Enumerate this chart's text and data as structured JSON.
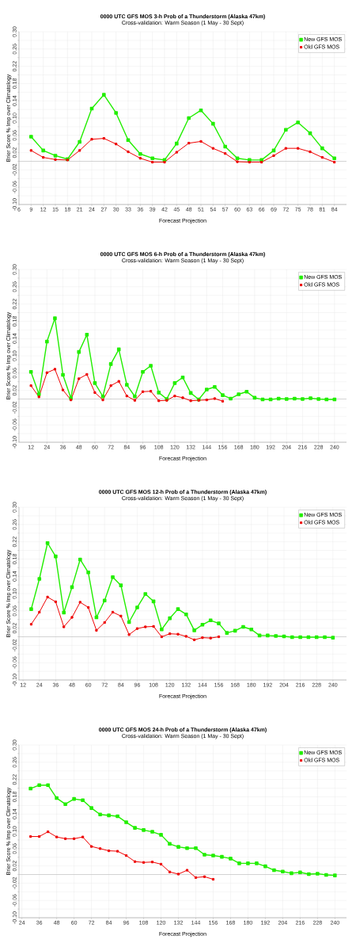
{
  "chart_data": [
    {
      "type": "line",
      "title": "0000 UTC GFS MOS 3-h Prob of a Thunderstorm (Alaska 47km)",
      "subtitle": "Cross-validation: Warm Season (1 May - 30 Sept)",
      "xlabel": "Forecast Projection",
      "ylabel": "Brier Score % Imp over Climatology",
      "grid": true,
      "legend": "top right",
      "marker": "square",
      "line_style": "solid",
      "xlim": [
        6,
        87
      ],
      "ylim": [
        -0.1,
        0.3
      ],
      "xticks": [
        6,
        9,
        12,
        15,
        18,
        21,
        24,
        27,
        30,
        33,
        36,
        39,
        42,
        45,
        48,
        51,
        54,
        57,
        60,
        63,
        66,
        69,
        72,
        75,
        78,
        81,
        84
      ],
      "yticks": [
        {
          "value": -0.1,
          "label": "-0.10"
        },
        {
          "value": -0.08,
          "label": null
        },
        {
          "value": -0.06,
          "label": "-0.06"
        },
        {
          "value": -0.04,
          "label": null
        },
        {
          "value": -0.02,
          "label": "-0.02"
        },
        {
          "value": 0,
          "label": null
        },
        {
          "value": 0.02,
          "label": "0.02"
        },
        {
          "value": 0.04,
          "label": null
        },
        {
          "value": 0.06,
          "label": "0.06"
        },
        {
          "value": 0.08,
          "label": null
        },
        {
          "value": 0.1,
          "label": "0.10"
        },
        {
          "value": 0.12,
          "label": null
        },
        {
          "value": 0.14,
          "label": "0.14"
        },
        {
          "value": 0.16,
          "label": null
        },
        {
          "value": 0.18,
          "label": "0.18"
        },
        {
          "value": 0.2,
          "label": null
        },
        {
          "value": 0.22,
          "label": "0.22"
        },
        {
          "value": 0.24,
          "label": null
        },
        {
          "value": 0.26,
          "label": "0.26"
        },
        {
          "value": 0.28,
          "label": null
        },
        {
          "value": 0.3,
          "label": "0.30"
        }
      ],
      "ref_lines": [
        {
          "axis": "y",
          "value": 0,
          "color": "#b0b0b0"
        }
      ],
      "series": [
        {
          "name": "New GFS MOS",
          "color": "#22ee00",
          "x": [
            9,
            12,
            15,
            18,
            21,
            24,
            27,
            30,
            33,
            36,
            39,
            42,
            45,
            48,
            51,
            54,
            57,
            60,
            63,
            66,
            69,
            72,
            75,
            78,
            81,
            84
          ],
          "values": [
            0.057,
            0.025,
            0.013,
            0.005,
            0.045,
            0.122,
            0.154,
            0.112,
            0.049,
            0.017,
            0.007,
            0.003,
            0.041,
            0.1,
            0.118,
            0.087,
            0.034,
            0.007,
            0.003,
            0.003,
            0.025,
            0.073,
            0.09,
            0.065,
            0.03,
            0.007
          ]
        },
        {
          "name": "Old GFS MOS",
          "color": "#ee0000",
          "x": [
            9,
            12,
            15,
            18,
            21,
            24,
            27,
            30,
            33,
            36,
            39,
            42,
            45,
            48,
            51,
            54,
            57,
            60,
            63,
            66,
            69,
            72,
            75,
            78,
            81,
            84
          ],
          "values": [
            0.025,
            0.009,
            0.004,
            0.003,
            0.025,
            0.051,
            0.053,
            0.04,
            0.022,
            0.007,
            -0.002,
            -0.002,
            0.021,
            0.042,
            0.046,
            0.03,
            0.018,
            -0.001,
            -0.002,
            -0.002,
            0.013,
            0.03,
            0.03,
            0.022,
            0.009,
            -0.002
          ]
        }
      ]
    },
    {
      "type": "line",
      "title": "0000 UTC GFS MOS 6-h Prob of a Thunderstorm (Alaska 47km)",
      "subtitle": "Cross-validation: Warm Season (1 May - 30 Sept)",
      "xlabel": "Forecast Projection",
      "ylabel": "Brier Score % Imp over Climatology",
      "grid": true,
      "legend": "top right",
      "marker": "square",
      "line_style": "solid",
      "xlim": [
        3,
        249
      ],
      "ylim": [
        -0.1,
        0.3
      ],
      "xticks": [
        12,
        24,
        36,
        48,
        60,
        72,
        84,
        96,
        108,
        120,
        132,
        144,
        156,
        168,
        180,
        192,
        204,
        216,
        228,
        240
      ],
      "yticks": [
        {
          "value": -0.1,
          "label": "-0.10"
        },
        {
          "value": -0.08,
          "label": null
        },
        {
          "value": -0.06,
          "label": "-0.06"
        },
        {
          "value": -0.04,
          "label": null
        },
        {
          "value": -0.02,
          "label": "-0.02"
        },
        {
          "value": 0,
          "label": null
        },
        {
          "value": 0.02,
          "label": "0.02"
        },
        {
          "value": 0.04,
          "label": null
        },
        {
          "value": 0.06,
          "label": "0.06"
        },
        {
          "value": 0.08,
          "label": null
        },
        {
          "value": 0.1,
          "label": "0.10"
        },
        {
          "value": 0.12,
          "label": null
        },
        {
          "value": 0.14,
          "label": "0.14"
        },
        {
          "value": 0.16,
          "label": null
        },
        {
          "value": 0.18,
          "label": "0.18"
        },
        {
          "value": 0.2,
          "label": null
        },
        {
          "value": 0.22,
          "label": "0.22"
        },
        {
          "value": 0.24,
          "label": null
        },
        {
          "value": 0.26,
          "label": "0.26"
        },
        {
          "value": 0.28,
          "label": null
        },
        {
          "value": 0.3,
          "label": "0.30"
        }
      ],
      "ref_lines": [
        {
          "axis": "y",
          "value": 0,
          "color": "#b0b0b0"
        }
      ],
      "series": [
        {
          "name": "New GFS MOS",
          "color": "#22ee00",
          "x": [
            12,
            18,
            24,
            30,
            36,
            42,
            48,
            54,
            60,
            66,
            72,
            78,
            84,
            90,
            96,
            102,
            108,
            114,
            120,
            126,
            132,
            138,
            144,
            150,
            156,
            162,
            168,
            174,
            180,
            186,
            192,
            198,
            204,
            210,
            216,
            222,
            228,
            234,
            240
          ],
          "values": [
            0.063,
            0.011,
            0.133,
            0.187,
            0.056,
            0.002,
            0.109,
            0.149,
            0.037,
            0.006,
            0.081,
            0.115,
            0.033,
            0.006,
            0.063,
            0.077,
            0.015,
            0.0,
            0.037,
            0.05,
            0.014,
            -0.001,
            0.022,
            0.028,
            0.009,
            0.001,
            0.011,
            0.017,
            0.003,
            -0.001,
            -0.001,
            0.001,
            0.0,
            0.001,
            0.0,
            0.002,
            0.0,
            -0.001,
            -0.001
          ]
        },
        {
          "name": "Old GFS MOS",
          "color": "#ee0000",
          "x": [
            12,
            18,
            24,
            30,
            36,
            42,
            48,
            54,
            60,
            66,
            72,
            78,
            84,
            90,
            96,
            102,
            108,
            114,
            120,
            126,
            132,
            138,
            144,
            150,
            156
          ],
          "values": [
            0.031,
            0.005,
            0.061,
            0.069,
            0.021,
            -0.002,
            0.047,
            0.057,
            0.015,
            -0.002,
            0.031,
            0.041,
            0.007,
            -0.003,
            0.017,
            0.018,
            -0.004,
            -0.003,
            0.007,
            0.003,
            -0.004,
            -0.003,
            -0.002,
            0.001,
            -0.005
          ]
        }
      ]
    },
    {
      "type": "line",
      "title": "0000 UTC GFS MOS 12-h Prob of a Thunderstorm (Alaska 47km)",
      "subtitle": "Cross-validation: Warm Season (1 May - 30 Sept)",
      "xlabel": "Forecast Projection",
      "ylabel": "Brier Score % Imp over Climatology",
      "grid": true,
      "legend": "top right",
      "marker": "square",
      "line_style": "solid",
      "xlim": [
        9,
        250
      ],
      "ylim": [
        -0.1,
        0.3
      ],
      "xticks": [
        12,
        24,
        36,
        48,
        60,
        72,
        84,
        96,
        108,
        120,
        132,
        144,
        156,
        168,
        180,
        192,
        204,
        216,
        228,
        240
      ],
      "yticks": [
        {
          "value": -0.1,
          "label": "-0.10"
        },
        {
          "value": -0.08,
          "label": null
        },
        {
          "value": -0.06,
          "label": "-0.06"
        },
        {
          "value": -0.04,
          "label": null
        },
        {
          "value": -0.02,
          "label": "-0.02"
        },
        {
          "value": 0,
          "label": null
        },
        {
          "value": 0.02,
          "label": "0.02"
        },
        {
          "value": 0.04,
          "label": null
        },
        {
          "value": 0.06,
          "label": "0.06"
        },
        {
          "value": 0.08,
          "label": null
        },
        {
          "value": 0.1,
          "label": "0.10"
        },
        {
          "value": 0.12,
          "label": null
        },
        {
          "value": 0.14,
          "label": "0.14"
        },
        {
          "value": 0.16,
          "label": null
        },
        {
          "value": 0.18,
          "label": "0.18"
        },
        {
          "value": 0.2,
          "label": null
        },
        {
          "value": 0.22,
          "label": "0.22"
        },
        {
          "value": 0.24,
          "label": null
        },
        {
          "value": 0.26,
          "label": "0.26"
        },
        {
          "value": 0.28,
          "label": null
        },
        {
          "value": 0.3,
          "label": "0.30"
        }
      ],
      "ref_lines": [
        {
          "axis": "y",
          "value": 0,
          "color": "#b0b0b0"
        }
      ],
      "series": [
        {
          "name": "New GFS MOS",
          "color": "#22ee00",
          "x": [
            18,
            24,
            30,
            36,
            42,
            48,
            54,
            60,
            66,
            72,
            78,
            84,
            90,
            96,
            102,
            108,
            114,
            120,
            126,
            132,
            138,
            144,
            150,
            156,
            162,
            168,
            174,
            180,
            186,
            192,
            198,
            204,
            210,
            216,
            222,
            228,
            234,
            240
          ],
          "values": [
            0.064,
            0.134,
            0.217,
            0.186,
            0.056,
            0.115,
            0.179,
            0.149,
            0.045,
            0.084,
            0.138,
            0.119,
            0.034,
            0.068,
            0.099,
            0.082,
            0.017,
            0.043,
            0.064,
            0.052,
            0.015,
            0.028,
            0.038,
            0.031,
            0.009,
            0.014,
            0.023,
            0.017,
            0.003,
            0.003,
            0.002,
            0.001,
            -0.001,
            -0.001,
            -0.001,
            -0.001,
            -0.001,
            -0.002
          ]
        },
        {
          "name": "Old GFS MOS",
          "color": "#ee0000",
          "x": [
            18,
            24,
            30,
            36,
            42,
            48,
            54,
            60,
            66,
            72,
            78,
            84,
            90,
            96,
            102,
            108,
            114,
            120,
            126,
            132,
            138,
            144,
            150,
            156
          ],
          "values": [
            0.029,
            0.057,
            0.092,
            0.081,
            0.023,
            0.045,
            0.08,
            0.068,
            0.015,
            0.033,
            0.057,
            0.048,
            0.005,
            0.019,
            0.023,
            0.024,
            0.0,
            0.007,
            0.006,
            0.001,
            -0.007,
            -0.002,
            -0.003,
            0.0
          ]
        }
      ]
    },
    {
      "type": "line",
      "title": "0000 UTC GFS MOS 24-h Prob of a Thunderstorm (Alaska 47km)",
      "subtitle": "Cross-validation: Warm Season (1 May - 30 Sept)",
      "xlabel": "Forecast Projection",
      "ylabel": "Brier Score % Imp over Climatology",
      "grid": true,
      "legend": "top right",
      "marker": "square",
      "line_style": "solid",
      "xlim": [
        22,
        248
      ],
      "ylim": [
        -0.1,
        0.3
      ],
      "xticks": [
        24,
        36,
        48,
        60,
        72,
        84,
        96,
        108,
        120,
        132,
        144,
        156,
        168,
        180,
        192,
        204,
        216,
        228,
        240
      ],
      "yticks": [
        {
          "value": -0.1,
          "label": "-0.10"
        },
        {
          "value": -0.08,
          "label": null
        },
        {
          "value": -0.06,
          "label": "-0.06"
        },
        {
          "value": -0.04,
          "label": null
        },
        {
          "value": -0.02,
          "label": "-0.02"
        },
        {
          "value": 0,
          "label": null
        },
        {
          "value": 0.02,
          "label": "0.02"
        },
        {
          "value": 0.04,
          "label": null
        },
        {
          "value": 0.06,
          "label": "0.06"
        },
        {
          "value": 0.08,
          "label": null
        },
        {
          "value": 0.1,
          "label": "0.10"
        },
        {
          "value": 0.12,
          "label": null
        },
        {
          "value": 0.14,
          "label": "0.14"
        },
        {
          "value": 0.16,
          "label": null
        },
        {
          "value": 0.18,
          "label": "0.18"
        },
        {
          "value": 0.2,
          "label": null
        },
        {
          "value": 0.22,
          "label": "0.22"
        },
        {
          "value": 0.24,
          "label": null
        },
        {
          "value": 0.26,
          "label": "0.26"
        },
        {
          "value": 0.28,
          "label": null
        },
        {
          "value": 0.3,
          "label": "0.30"
        }
      ],
      "ref_lines": [
        {
          "axis": "y",
          "value": 0,
          "color": "#b0b0b0"
        }
      ],
      "series": [
        {
          "name": "New GFS MOS",
          "color": "#22ee00",
          "x": [
            30,
            36,
            42,
            48,
            54,
            60,
            66,
            72,
            78,
            84,
            90,
            96,
            102,
            108,
            114,
            120,
            126,
            132,
            138,
            144,
            150,
            156,
            162,
            168,
            174,
            180,
            186,
            192,
            198,
            204,
            210,
            216,
            222,
            228,
            234,
            240
          ],
          "values": [
            0.199,
            0.207,
            0.207,
            0.177,
            0.163,
            0.175,
            0.172,
            0.154,
            0.139,
            0.137,
            0.135,
            0.121,
            0.108,
            0.103,
            0.099,
            0.092,
            0.071,
            0.064,
            0.061,
            0.061,
            0.046,
            0.044,
            0.041,
            0.037,
            0.026,
            0.026,
            0.026,
            0.019,
            0.01,
            0.007,
            0.003,
            0.005,
            0.001,
            0.002,
            -0.001,
            -0.002
          ]
        },
        {
          "name": "Old GFS MOS",
          "color": "#ee0000",
          "x": [
            30,
            36,
            42,
            48,
            54,
            60,
            66,
            72,
            78,
            84,
            90,
            96,
            102,
            108,
            114,
            120,
            126,
            132,
            138,
            144,
            150,
            156
          ],
          "values": [
            0.088,
            0.088,
            0.099,
            0.087,
            0.083,
            0.083,
            0.087,
            0.065,
            0.06,
            0.055,
            0.054,
            0.044,
            0.03,
            0.028,
            0.029,
            0.024,
            0.006,
            0.001,
            0.01,
            -0.007,
            -0.005,
            -0.011
          ]
        }
      ]
    }
  ]
}
